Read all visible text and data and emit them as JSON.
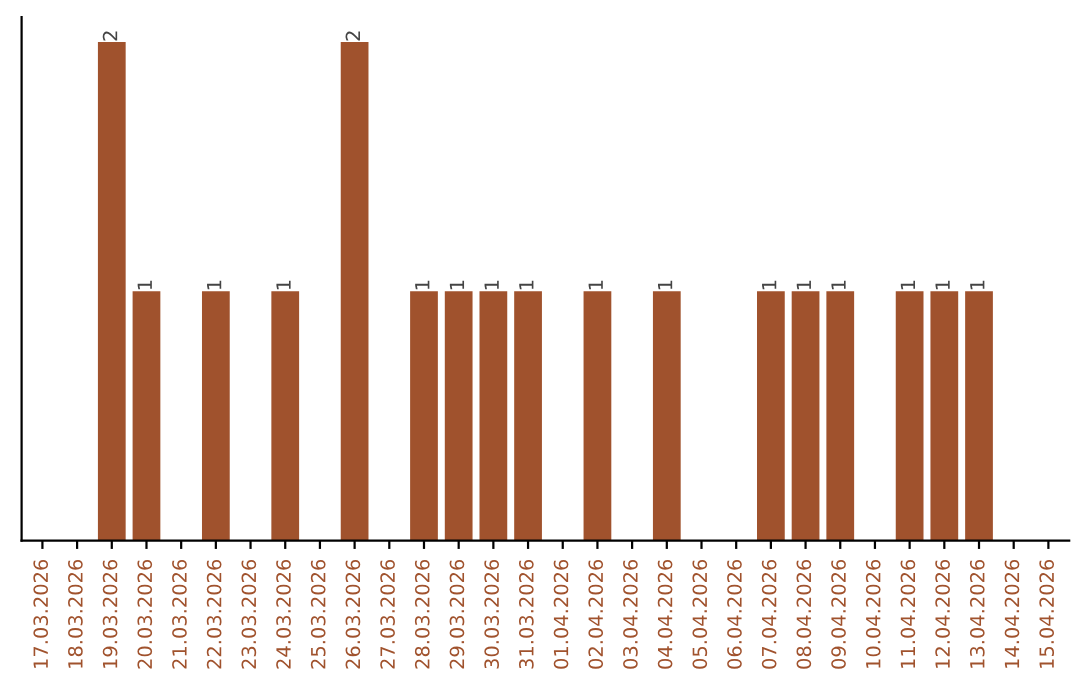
{
  "chart_data": {
    "type": "bar",
    "categories": [
      "17.03.2026",
      "18.03.2026",
      "19.03.2026",
      "20.03.2026",
      "21.03.2026",
      "22.03.2026",
      "23.03.2026",
      "24.03.2026",
      "25.03.2026",
      "26.03.2026",
      "27.03.2026",
      "28.03.2026",
      "29.03.2026",
      "30.03.2026",
      "31.03.2026",
      "01.04.2026",
      "02.04.2026",
      "03.04.2026",
      "04.04.2026",
      "05.04.2026",
      "06.04.2026",
      "07.04.2026",
      "08.04.2026",
      "09.04.2026",
      "10.04.2026",
      "11.04.2026",
      "12.04.2026",
      "13.04.2026",
      "14.04.2026",
      "15.04.2026"
    ],
    "values": [
      0,
      0,
      2,
      1,
      0,
      1,
      0,
      1,
      0,
      2,
      0,
      1,
      1,
      1,
      1,
      0,
      1,
      0,
      1,
      0,
      0,
      1,
      1,
      1,
      0,
      1,
      1,
      1,
      0,
      0
    ],
    "value_labels": [
      null,
      null,
      "2",
      "1",
      null,
      "1",
      null,
      "1",
      null,
      "2",
      null,
      "1",
      "1",
      "1",
      "1",
      null,
      "1",
      null,
      "1",
      null,
      null,
      "1",
      "1",
      "1",
      null,
      "1",
      "1",
      "1",
      null,
      null
    ],
    "color": "#a0522d",
    "tick_labels": "x",
    "grid": false,
    "legend": false
  }
}
